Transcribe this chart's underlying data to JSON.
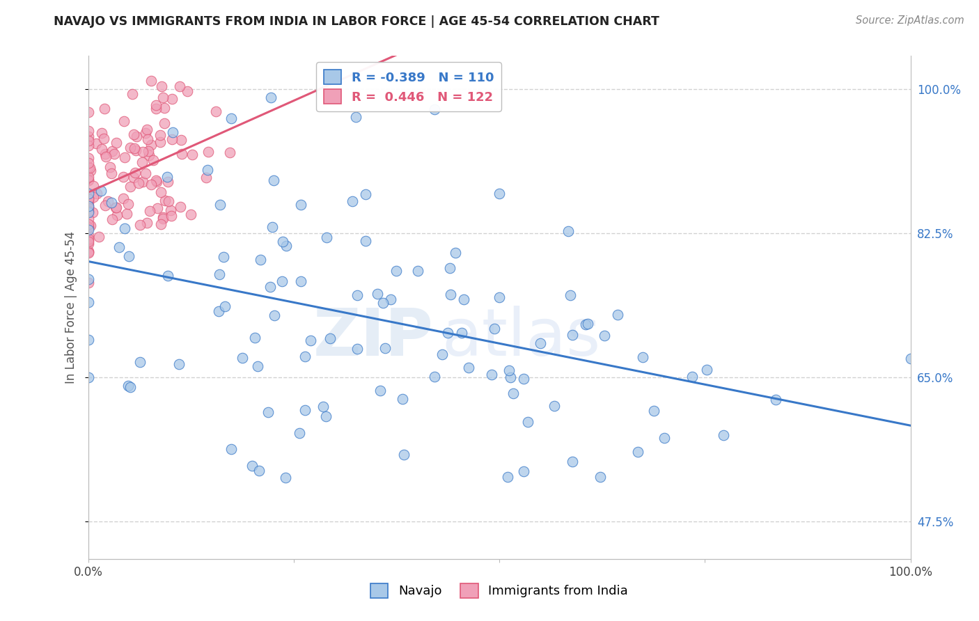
{
  "title": "NAVAJO VS IMMIGRANTS FROM INDIA IN LABOR FORCE | AGE 45-54 CORRELATION CHART",
  "source": "Source: ZipAtlas.com",
  "ylabel": "In Labor Force | Age 45-54",
  "navajo_R": -0.389,
  "navajo_N": 110,
  "india_R": 0.446,
  "india_N": 122,
  "navajo_color": "#a8c8e8",
  "india_color": "#f0a0b8",
  "navajo_line_color": "#3878c8",
  "india_line_color": "#e05878",
  "legend_navajo": "Navajo",
  "legend_india": "Immigrants from India",
  "xlim": [
    0.0,
    1.0
  ],
  "ylim": [
    0.43,
    1.04
  ],
  "yticks": [
    0.475,
    0.65,
    0.825,
    1.0
  ],
  "ytick_labels": [
    "47.5%",
    "65.0%",
    "82.5%",
    "100.0%"
  ],
  "xtick_labels": [
    "0.0%",
    "100.0%"
  ],
  "xticks": [
    0.0,
    1.0
  ],
  "watermark_zip": "ZIP",
  "watermark_atlas": "atlas",
  "background_color": "#ffffff",
  "grid_color": "#cccccc"
}
